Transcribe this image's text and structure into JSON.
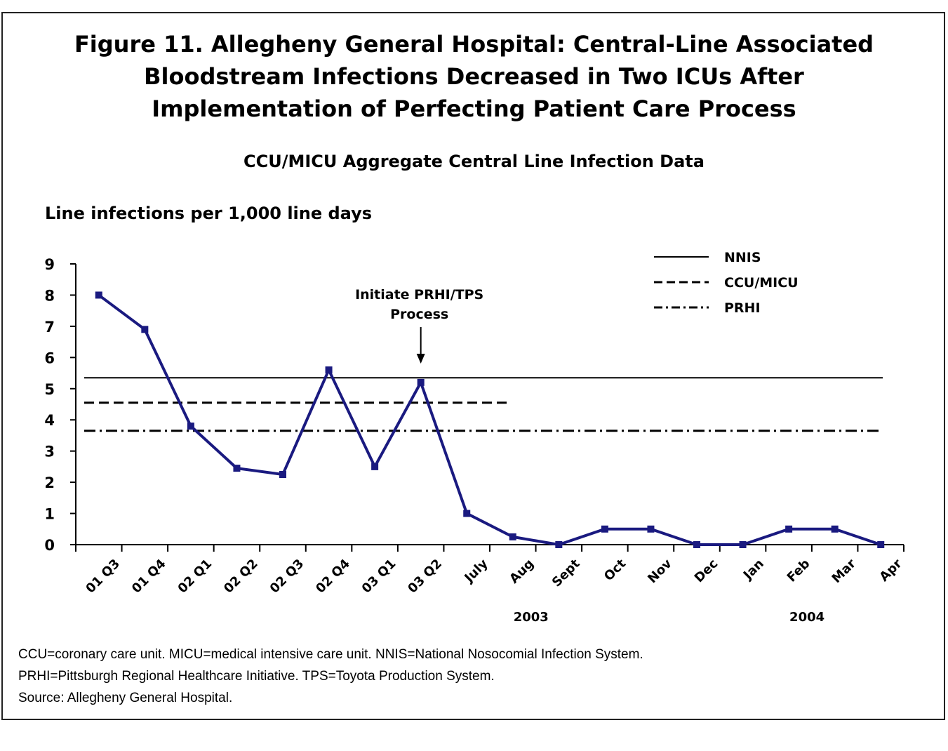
{
  "figure_title_lines": [
    "Figure 11. Allegheny General Hospital: Central-Line Associated",
    "Bloodstream Infections Decreased in Two ICUs After",
    "Implementation of Perfecting Patient Care Process"
  ],
  "footnote_lines": [
    "CCU=coronary care unit. MICU=medical intensive care unit. NNIS=National Nosocomial Infection System.",
    "PRHI=Pittsburgh Regional Healthcare Initiative. TPS=Toyota Production System.",
    "Source: Allegheny General Hospital."
  ],
  "colors": {
    "series": "#1a1a80",
    "reference": "#000000"
  },
  "chart_data": {
    "type": "line",
    "title": "CCU/MICU Aggregate Central Line Infection Data",
    "ylabel": "Line infections per 1,000 line days",
    "xlabel": "",
    "ylim": [
      0,
      9
    ],
    "yticks": [
      0,
      1,
      2,
      3,
      4,
      5,
      6,
      7,
      8,
      9
    ],
    "categories": [
      "01 Q3",
      "01 Q4",
      "02 Q1",
      "02 Q2",
      "02 Q3",
      "02 Q4",
      "03 Q1",
      "03 Q2",
      "July",
      "Aug",
      "Sept",
      "Oct",
      "Nov",
      "Dec",
      "Jan",
      "Feb",
      "Mar",
      "Apr"
    ],
    "series": [
      {
        "values": [
          8.0,
          6.9,
          3.8,
          2.45,
          2.25,
          5.6,
          2.5,
          5.2,
          1.0,
          0.25,
          0.0,
          0.5,
          0.5,
          0.0,
          0.0,
          0.5,
          0.5,
          0.0
        ]
      }
    ],
    "reference_lines": [
      {
        "name": "NNIS",
        "value": 5.35,
        "style": "solid",
        "span": "full"
      },
      {
        "name": "CCU/MICU",
        "value": 4.55,
        "style": "dashed",
        "span": "partial"
      },
      {
        "name": "PRHI",
        "value": 3.65,
        "style": "dashdot",
        "span": "full"
      }
    ],
    "year_labels": [
      "2003",
      "2004"
    ],
    "annotation": {
      "text_lines": [
        "Initiate PRHI/TPS",
        "Process"
      ],
      "category": "03 Q2"
    },
    "legend_position": "top-right",
    "grid": false
  }
}
